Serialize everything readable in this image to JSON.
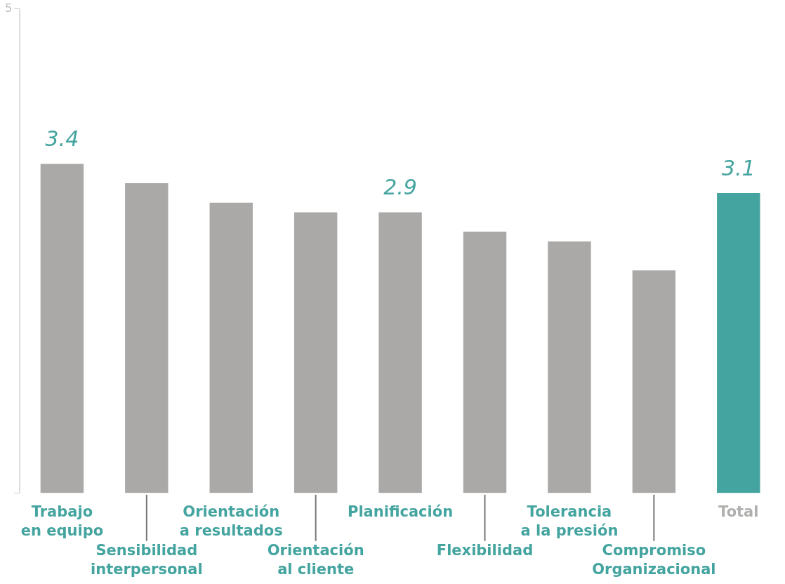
{
  "chart_data": {
    "type": "bar",
    "categories": [
      "Trabajo\nen equipo",
      "Sensibilidad\ninterpersonal",
      "Orientación\na resultados",
      "Orientación\nal cliente",
      "Planificación",
      "Flexibilidad",
      "Tolerancia\na la presión",
      "Compromiso\nOrganizacional",
      "Total"
    ],
    "values": [
      3.4,
      3.2,
      3.0,
      2.9,
      2.9,
      2.7,
      2.6,
      2.3,
      3.1
    ],
    "colors": [
      "#aaa9a7",
      "#aaa9a7",
      "#aaa9a7",
      "#aaa9a7",
      "#aaa9a7",
      "#aaa9a7",
      "#aaa9a7",
      "#aaa9a7",
      "#44a49f"
    ],
    "value_labels": [
      "3.4",
      null,
      null,
      null,
      "2.9",
      null,
      null,
      null,
      "3.1"
    ],
    "ylim": [
      0,
      5
    ],
    "yticks": [
      {
        "value": 0,
        "label": null
      },
      5
    ]
  }
}
